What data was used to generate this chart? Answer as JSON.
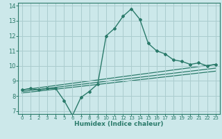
{
  "xlabel": "Humidex (Indice chaleur)",
  "bg_color": "#cce8ea",
  "grid_color": "#aaccce",
  "line_color": "#2a7a6a",
  "xlim": [
    -0.5,
    23.5
  ],
  "ylim": [
    6.8,
    14.2
  ],
  "xticks": [
    0,
    1,
    2,
    3,
    4,
    5,
    6,
    7,
    8,
    9,
    10,
    11,
    12,
    13,
    14,
    15,
    16,
    17,
    18,
    19,
    20,
    21,
    22,
    23
  ],
  "yticks": [
    7,
    8,
    9,
    10,
    11,
    12,
    13,
    14
  ],
  "main_line_x": [
    0,
    1,
    2,
    3,
    4,
    5,
    6,
    7,
    8,
    9,
    10,
    11,
    12,
    13,
    14,
    15,
    16,
    17,
    18,
    19,
    20,
    21,
    22,
    23
  ],
  "main_line_y": [
    8.4,
    8.5,
    8.4,
    8.5,
    8.5,
    7.7,
    6.7,
    7.9,
    8.3,
    8.8,
    12.0,
    12.5,
    13.3,
    13.8,
    13.1,
    11.5,
    11.0,
    10.8,
    10.4,
    10.3,
    10.1,
    10.2,
    10.0,
    10.1
  ],
  "line2_x": [
    0,
    23
  ],
  "line2_y": [
    8.4,
    10.1
  ],
  "line3_x": [
    0,
    23
  ],
  "line3_y": [
    8.3,
    9.85
  ],
  "line4_x": [
    0,
    23
  ],
  "line4_y": [
    8.2,
    9.65
  ]
}
